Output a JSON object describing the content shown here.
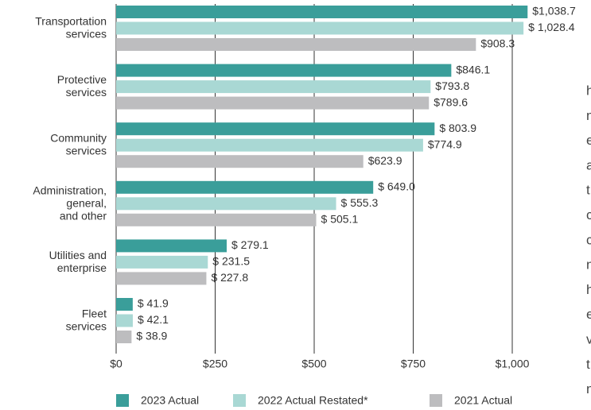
{
  "chart_data": {
    "type": "bar",
    "orientation": "horizontal",
    "categories": [
      "Transportation\nservices",
      "Protective\nservices",
      "Community\nservices",
      "Administration,\ngeneral,\nand other",
      "Utilities and\nenterprise",
      "Fleet\nservices"
    ],
    "series": [
      {
        "name": "2023 Actual",
        "color": "#3a9e9a",
        "values": [
          1038.7,
          846.1,
          803.9,
          649.0,
          279.1,
          41.9
        ],
        "value_labels": [
          "$1,038.7",
          "$846.1",
          "$ 803.9",
          "$ 649.0",
          "$ 279.1",
          "$ 41.9"
        ]
      },
      {
        "name": "2022 Actual Restated*",
        "color": "#a9d8d4",
        "values": [
          1028.4,
          793.8,
          774.9,
          555.3,
          231.5,
          42.1
        ],
        "value_labels": [
          "$ 1,028.4",
          "$793.8",
          "$774.9",
          "$ 555.3",
          "$ 231.5",
          "$ 42.1"
        ]
      },
      {
        "name": "2021 Actual",
        "color": "#bdbdbf",
        "values": [
          908.3,
          789.6,
          623.9,
          505.1,
          227.8,
          38.9
        ],
        "value_labels": [
          "$908.3",
          "$789.6",
          "$623.9",
          "$ 505.1",
          "$ 227.8",
          "$ 38.9"
        ]
      }
    ],
    "xlim": [
      0,
      1000
    ],
    "xticks": [
      {
        "value": 0,
        "label": "$0"
      },
      {
        "value": 250,
        "label": "$250"
      },
      {
        "value": 500,
        "label": "$500"
      },
      {
        "value": 750,
        "label": "$750"
      },
      {
        "value": 1000,
        "label": "$1,000"
      }
    ],
    "grid": true,
    "legend": "bottom"
  },
  "margin_text": [
    "h",
    "n",
    "e",
    "a",
    "t",
    "c",
    "c",
    "n",
    "h",
    "e",
    "v",
    "t",
    "n"
  ]
}
